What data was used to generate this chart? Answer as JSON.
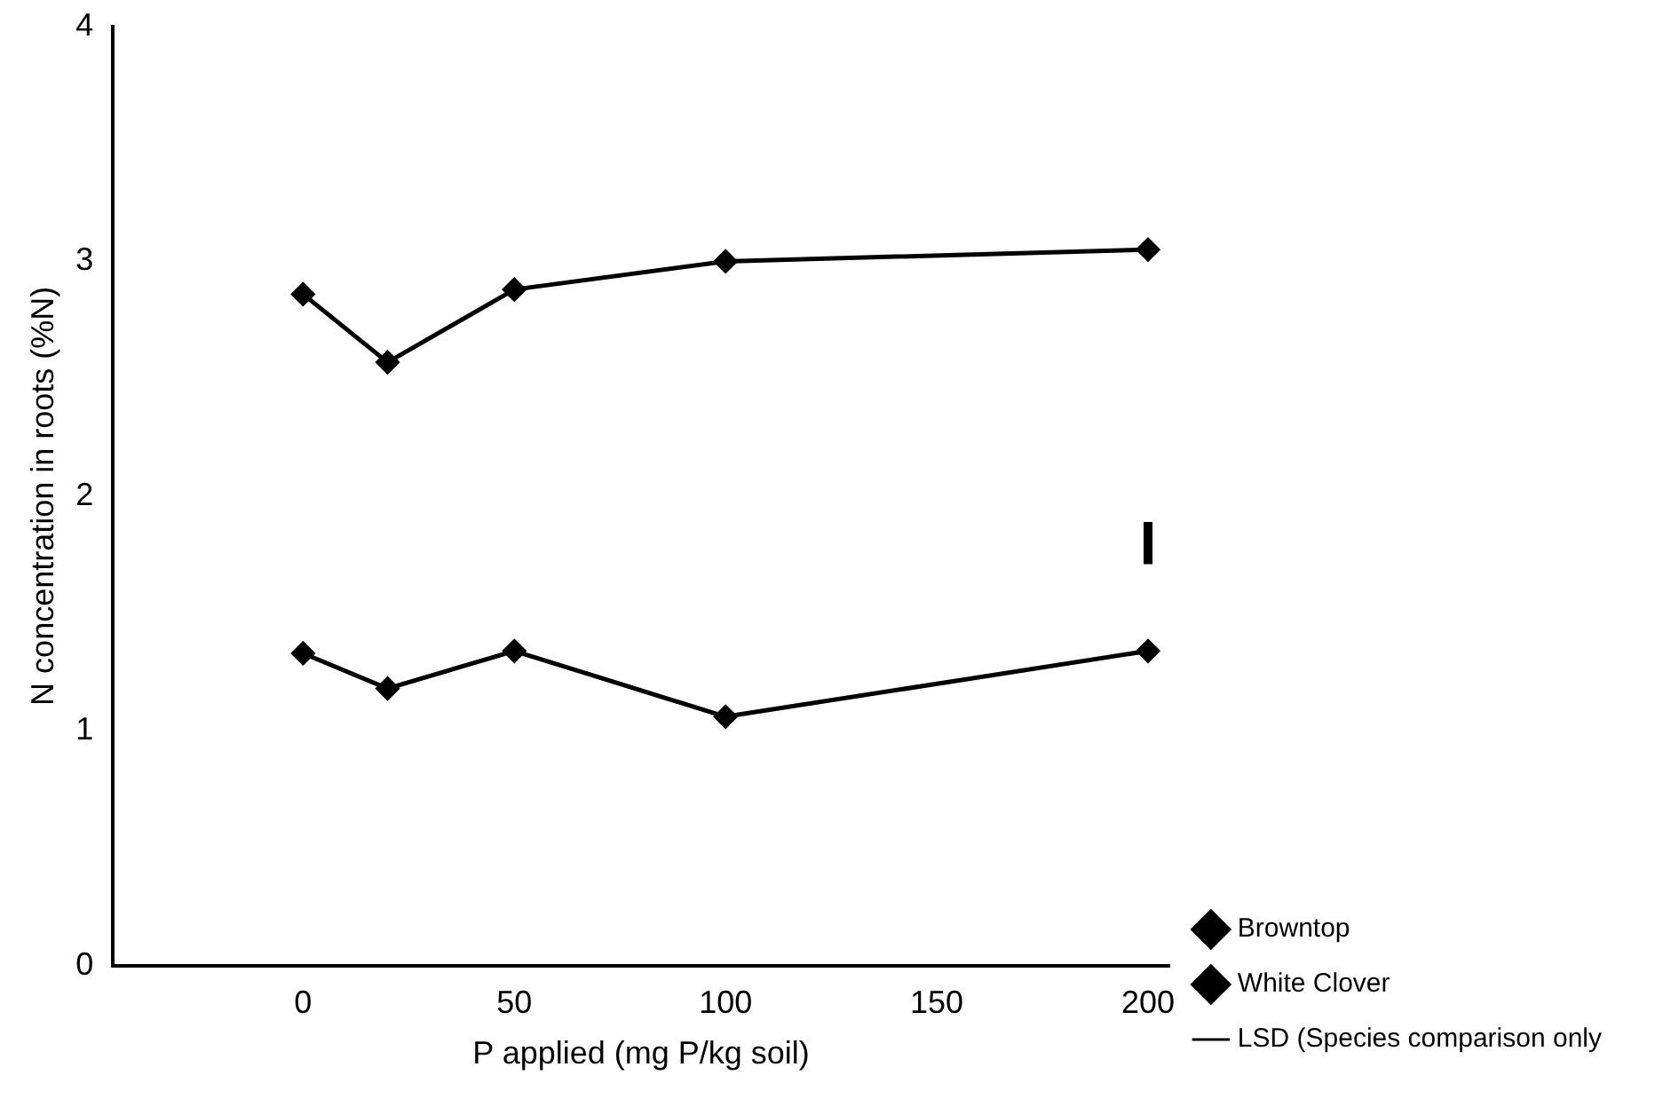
{
  "chart_data": {
    "type": "line",
    "xlabel": "P applied (mg P/kg soil)",
    "ylabel": "N concentration in roots (%N)",
    "xlim": [
      -45,
      205
    ],
    "xticks": [
      0,
      50,
      100,
      150,
      200
    ],
    "ylim": [
      0,
      4
    ],
    "yticks": [
      0,
      1,
      2,
      3,
      4
    ],
    "grid": false,
    "legend": "bottom right",
    "marker": "diamond",
    "line_style": "solid",
    "series": [
      {
        "name": "Browntop",
        "color": "#000000",
        "x": [
          0,
          20,
          50,
          100,
          200
        ],
        "values": [
          1.33,
          1.18,
          1.34,
          1.06,
          1.34
        ]
      },
      {
        "name": "White Clover",
        "color": "#000000",
        "x": [
          0,
          20,
          50,
          100,
          200
        ],
        "values": [
          2.86,
          2.57,
          2.88,
          3.0,
          3.05
        ]
      },
      {
        "name": "LSD (Species comparison only",
        "color": "#000000",
        "marker": "none",
        "x": [
          200,
          200
        ],
        "values": [
          1.71,
          1.89
        ]
      }
    ]
  }
}
